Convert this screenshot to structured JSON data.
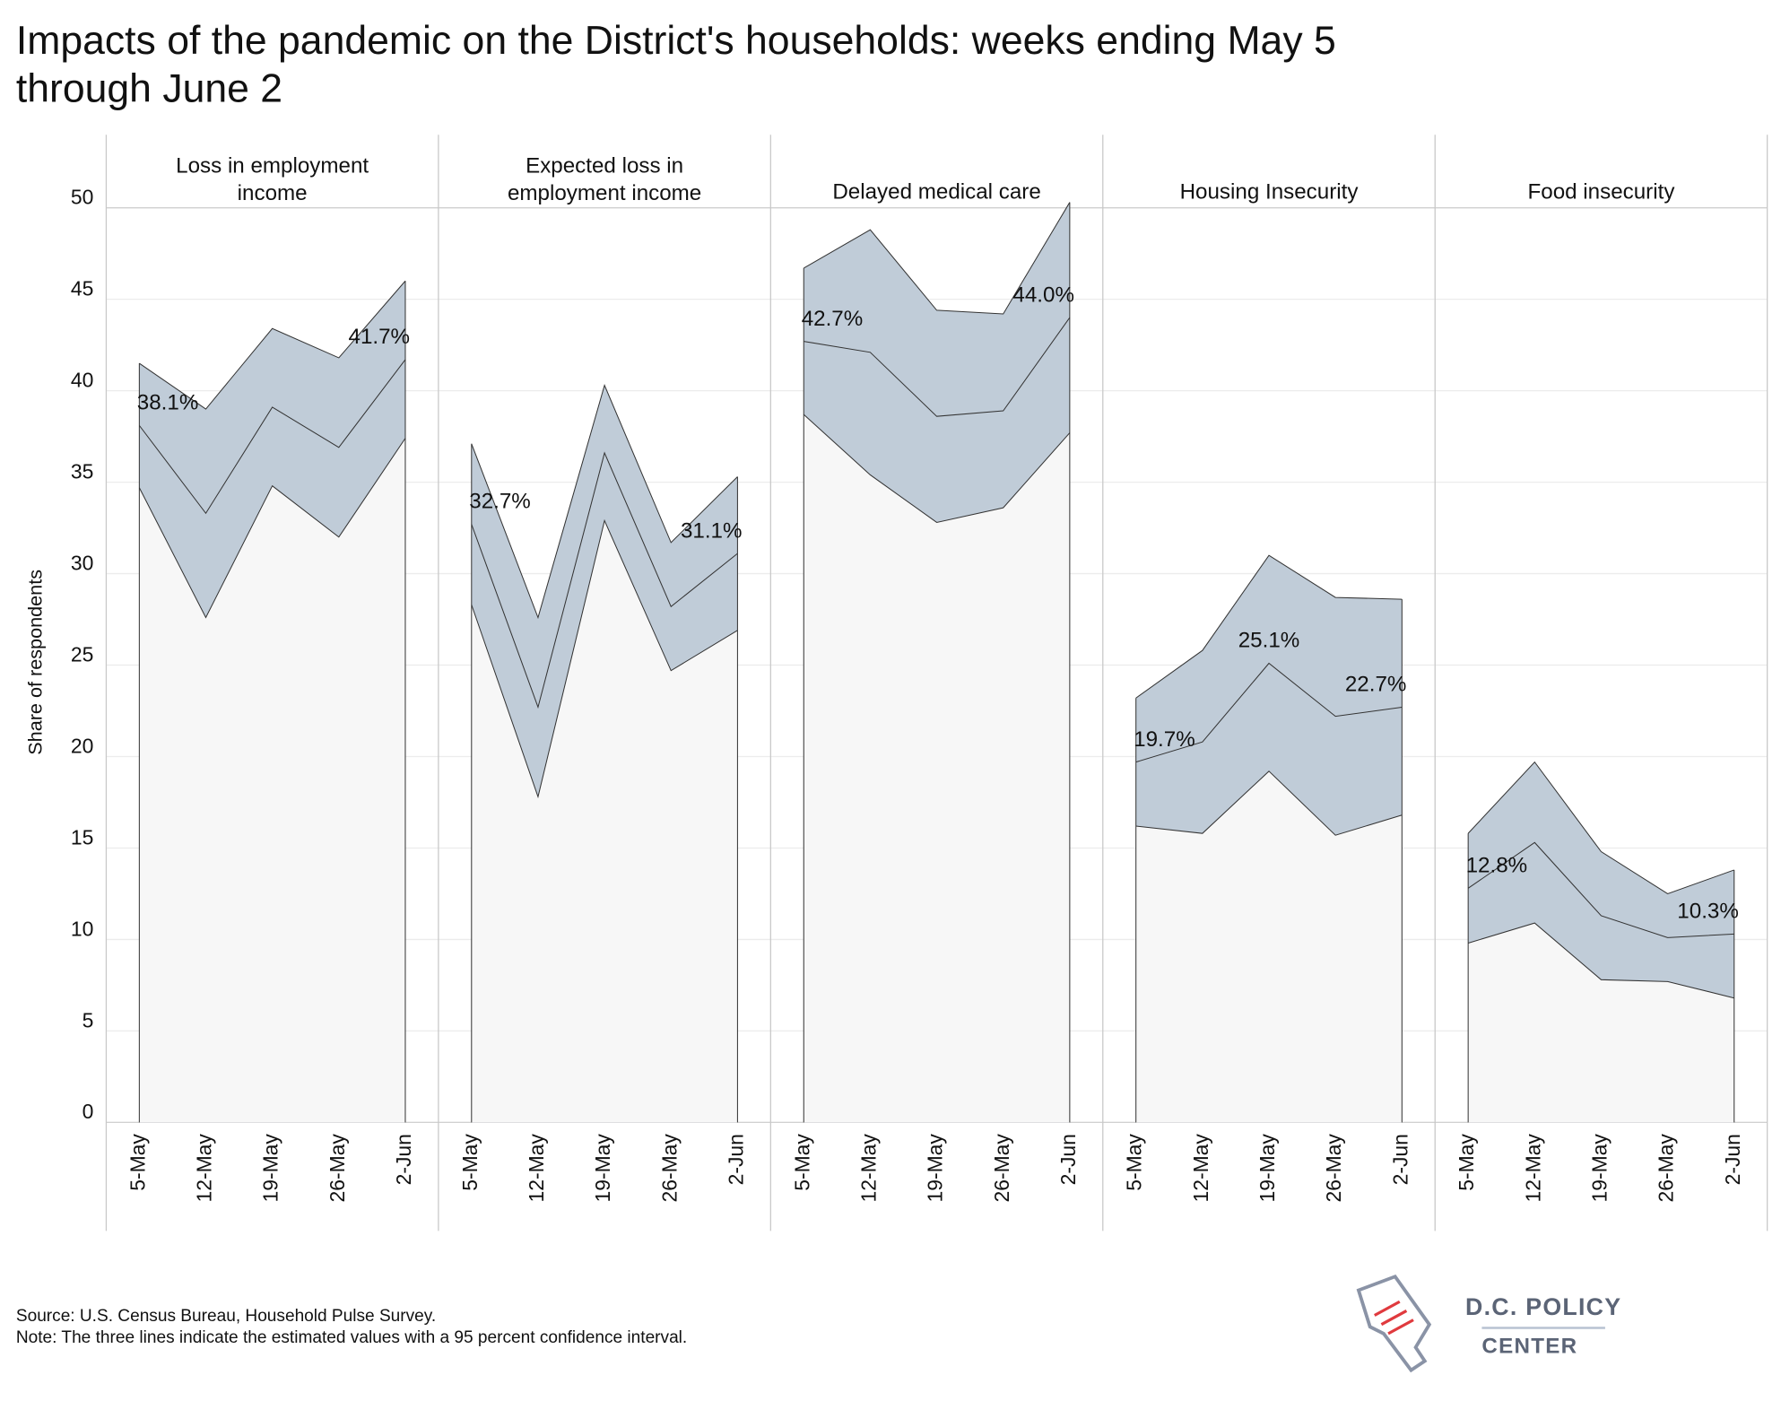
{
  "chart_data": {
    "type": "area",
    "title": [
      "Impacts of the pandemic on the District's households: weeks ending May 5",
      "through June 2"
    ],
    "ylabel": "Share of respondents",
    "categories": [
      "5-May",
      "12-May",
      "19-May",
      "26-May",
      "2-Jun"
    ],
    "ylim": [
      0,
      50
    ],
    "yticks": [
      0,
      5,
      10,
      15,
      20,
      25,
      30,
      35,
      40,
      45,
      50
    ],
    "grid": true,
    "band_color": "#c0ccd8",
    "base_color": "#f7f7f7",
    "line_color": "#333333",
    "panels": [
      {
        "title": [
          "Loss in employment",
          "income"
        ],
        "series": [
          {
            "values": [
              41.5,
              39.0,
              43.4,
              41.8,
              46.0
            ]
          },
          {
            "values": [
              38.1,
              33.3,
              39.1,
              36.9,
              41.7
            ],
            "value_labels": [
              "38.1%",
              null,
              null,
              null,
              "41.7%"
            ]
          },
          {
            "values": [
              34.7,
              27.6,
              34.8,
              32.0,
              37.4
            ]
          }
        ]
      },
      {
        "title": [
          "Expected loss in",
          "employment income"
        ],
        "series": [
          {
            "values": [
              37.1,
              27.6,
              40.3,
              31.7,
              35.3
            ]
          },
          {
            "values": [
              32.7,
              22.7,
              36.6,
              28.2,
              31.1
            ],
            "value_labels": [
              "32.7%",
              null,
              null,
              null,
              "31.1%"
            ]
          },
          {
            "values": [
              28.3,
              17.8,
              32.9,
              24.7,
              26.9
            ]
          }
        ]
      },
      {
        "title": [
          "Delayed medical care"
        ],
        "series": [
          {
            "values": [
              46.7,
              48.8,
              44.4,
              44.2,
              50.3
            ]
          },
          {
            "values": [
              42.7,
              42.1,
              38.6,
              38.9,
              44.0
            ],
            "value_labels": [
              "42.7%",
              null,
              null,
              null,
              "44.0%"
            ]
          },
          {
            "values": [
              38.7,
              35.4,
              32.8,
              33.6,
              37.7
            ]
          }
        ]
      },
      {
        "title": [
          "Housing Insecurity"
        ],
        "series": [
          {
            "values": [
              23.2,
              25.8,
              31.0,
              28.7,
              28.6
            ]
          },
          {
            "values": [
              19.7,
              20.8,
              25.1,
              22.2,
              22.7
            ],
            "value_labels": [
              "19.7%",
              null,
              "25.1%",
              null,
              "22.7%"
            ]
          },
          {
            "values": [
              16.2,
              15.8,
              19.2,
              15.7,
              16.8
            ]
          }
        ]
      },
      {
        "title": [
          "Food insecurity"
        ],
        "series": [
          {
            "values": [
              15.8,
              19.7,
              14.8,
              12.5,
              13.8
            ]
          },
          {
            "values": [
              12.8,
              15.3,
              11.3,
              10.1,
              10.3
            ],
            "value_labels": [
              "12.8%",
              null,
              null,
              null,
              "10.3%"
            ]
          },
          {
            "values": [
              9.8,
              10.9,
              7.8,
              7.7,
              6.8
            ]
          }
        ]
      }
    ]
  },
  "source": "Source: U.S. Census Bureau, Household Pulse Survey.",
  "note": "Note: The three lines indicate the estimated values with a 95 percent confidence interval.",
  "logo": [
    "D.C. POLICY",
    "CENTER"
  ]
}
